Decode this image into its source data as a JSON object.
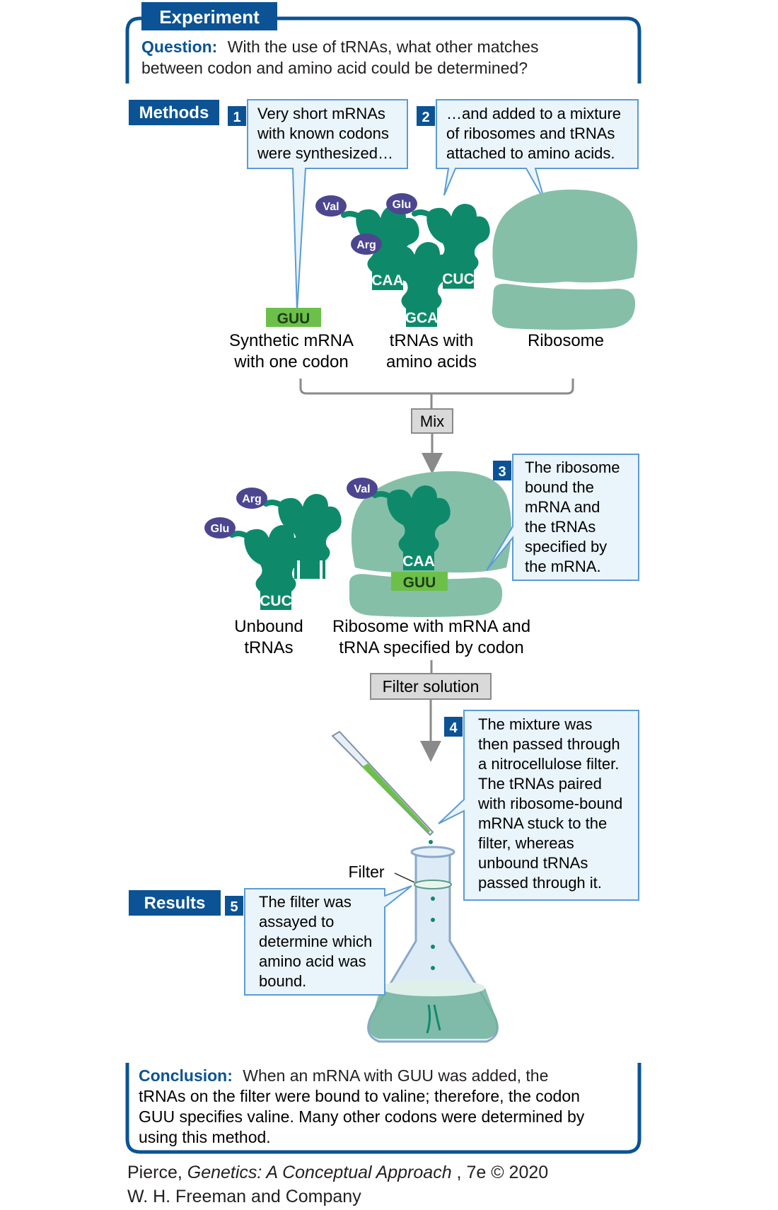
{
  "experiment_label": "Experiment",
  "question": {
    "label": "Question:",
    "line1": "With the use of tRNAs, what other matches",
    "line2": "between codon and amino acid could be determined?"
  },
  "methods_label": "Methods",
  "results_label": "Results",
  "steps": [
    {
      "num": "1",
      "lines": [
        "Very short mRNAs",
        "with known codons",
        "were synthesized…"
      ]
    },
    {
      "num": "2",
      "lines": [
        "…and added to a mixture",
        "of ribosomes and tRNAs",
        "attached to amino acids."
      ]
    },
    {
      "num": "3",
      "lines": [
        "The ribosome",
        "bound the",
        "mRNA and",
        "the tRNAs",
        "specified by",
        "the mRNA."
      ]
    },
    {
      "num": "4",
      "lines": [
        "The mixture was",
        "then passed through",
        "a nitrocellulose filter.",
        "The tRNAs paired",
        "with ribosome-bound",
        "mRNA stuck to the",
        "filter, whereas",
        "unbound tRNAs",
        "passed through it."
      ]
    },
    {
      "num": "5",
      "lines": [
        "The filter was",
        "assayed to",
        "determine which",
        "amino acid was",
        "bound."
      ]
    }
  ],
  "labels": {
    "synthetic_mrna": [
      "Synthetic mRNA",
      "with one codon"
    ],
    "trnas_with_aa": [
      "tRNAs with",
      "amino acids"
    ],
    "ribosome": "Ribosome",
    "mix": "Mix",
    "unbound_trnas": [
      "Unbound",
      "tRNAs"
    ],
    "ribosome_complex": [
      "Ribosome with mRNA and",
      "tRNA specified by codon"
    ],
    "filter_solution": "Filter solution",
    "filter": "Filter"
  },
  "molecules": {
    "codon": "GUU",
    "anticodons": [
      "CAA",
      "CUC",
      "GCA"
    ],
    "amino_acids": [
      "Val",
      "Glu",
      "Arg"
    ]
  },
  "conclusion": {
    "label": "Conclusion:",
    "line1": "When an mRNA with GUU was added, the",
    "line2": "tRNAs on the filter were bound to valine; therefore, the codon",
    "line3": "GUU specifies valine. Many other codons were determined by",
    "line4": "using this method."
  },
  "credit": {
    "author": "Pierce, ",
    "title": "Genetics: A Conceptual Approach",
    "edition": ", 7e © 2020",
    "publisher": "W. H. Freeman and Company"
  },
  "colors": {
    "navy": "#0b5394",
    "trna": "#0e8a6b",
    "ribosome": "#86bfa8",
    "mrna": "#6cc04a",
    "amino_acid": "#4c4690",
    "callout_border": "#5b9bd5",
    "callout_fill": "#eaf4fb",
    "gray_box": "#d9d9d9"
  }
}
